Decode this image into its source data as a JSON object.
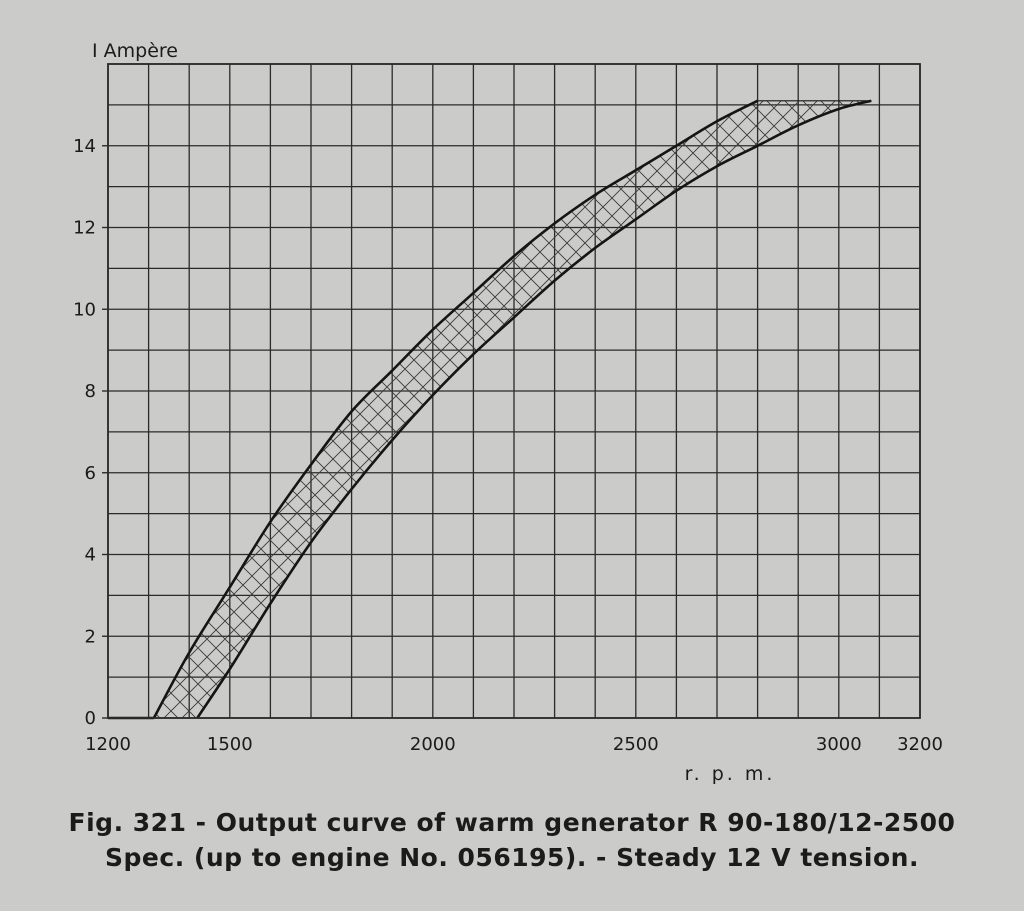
{
  "chart_data": {
    "type": "area",
    "title": "Fig. 321 - Output curve of warm generator R 90-180/12-2500",
    "subtitle": "Spec. (up to engine No. 056195). - Steady 12 V tension.",
    "ylabel": "I Ampère",
    "xlabel": "r. p. m.",
    "xlim": [
      1200,
      3200
    ],
    "ylim": [
      0,
      16
    ],
    "x_ticks": [
      {
        "value": 1200,
        "label": "1200"
      },
      {
        "value": 1500,
        "label": "1500"
      },
      {
        "value": 2000,
        "label": "2000"
      },
      {
        "value": 2500,
        "label": "2500"
      },
      {
        "value": 3000,
        "label": "3000"
      },
      {
        "value": 3200,
        "label": "3200"
      }
    ],
    "y_ticks": [
      {
        "value": 0,
        "label": "0"
      },
      {
        "value": 2,
        "label": "2"
      },
      {
        "value": 4,
        "label": "4"
      },
      {
        "value": 6,
        "label": "6"
      },
      {
        "value": 8,
        "label": "8"
      },
      {
        "value": 10,
        "label": "10"
      },
      {
        "value": 12,
        "label": "12"
      },
      {
        "value": 14,
        "label": "14"
      }
    ],
    "grid": true,
    "grid_step_x": 100,
    "grid_step_y": 1,
    "series": [
      {
        "role": "upper-bound",
        "points": [
          [
            1313,
            0
          ],
          [
            1400,
            1.6
          ],
          [
            1500,
            3.2
          ],
          [
            1600,
            4.8
          ],
          [
            1700,
            6.2
          ],
          [
            1800,
            7.5
          ],
          [
            1900,
            8.5
          ],
          [
            2000,
            9.5
          ],
          [
            2100,
            10.4
          ],
          [
            2200,
            11.3
          ],
          [
            2300,
            12.1
          ],
          [
            2400,
            12.8
          ],
          [
            2500,
            13.4
          ],
          [
            2600,
            14.0
          ],
          [
            2700,
            14.6
          ],
          [
            2800,
            15.1
          ]
        ]
      },
      {
        "role": "lower-bound",
        "points": [
          [
            1420,
            0
          ],
          [
            1500,
            1.2
          ],
          [
            1600,
            2.8
          ],
          [
            1700,
            4.3
          ],
          [
            1800,
            5.6
          ],
          [
            1900,
            6.8
          ],
          [
            2000,
            7.9
          ],
          [
            2100,
            8.9
          ],
          [
            2200,
            9.8
          ],
          [
            2300,
            10.7
          ],
          [
            2400,
            11.5
          ],
          [
            2500,
            12.2
          ],
          [
            2600,
            12.9
          ],
          [
            2700,
            13.5
          ],
          [
            2800,
            14.0
          ],
          [
            2900,
            14.5
          ],
          [
            3000,
            14.9
          ],
          [
            3080,
            15.1
          ]
        ]
      }
    ],
    "band_fill": "cross-hatched",
    "axis_baseline_start": 1200,
    "colors": {
      "background": "#cbcbc9",
      "grid": "#2b2b2b",
      "curve": "#151515",
      "hatch": "#3a3a3a",
      "text": "#1b1b1b"
    }
  }
}
